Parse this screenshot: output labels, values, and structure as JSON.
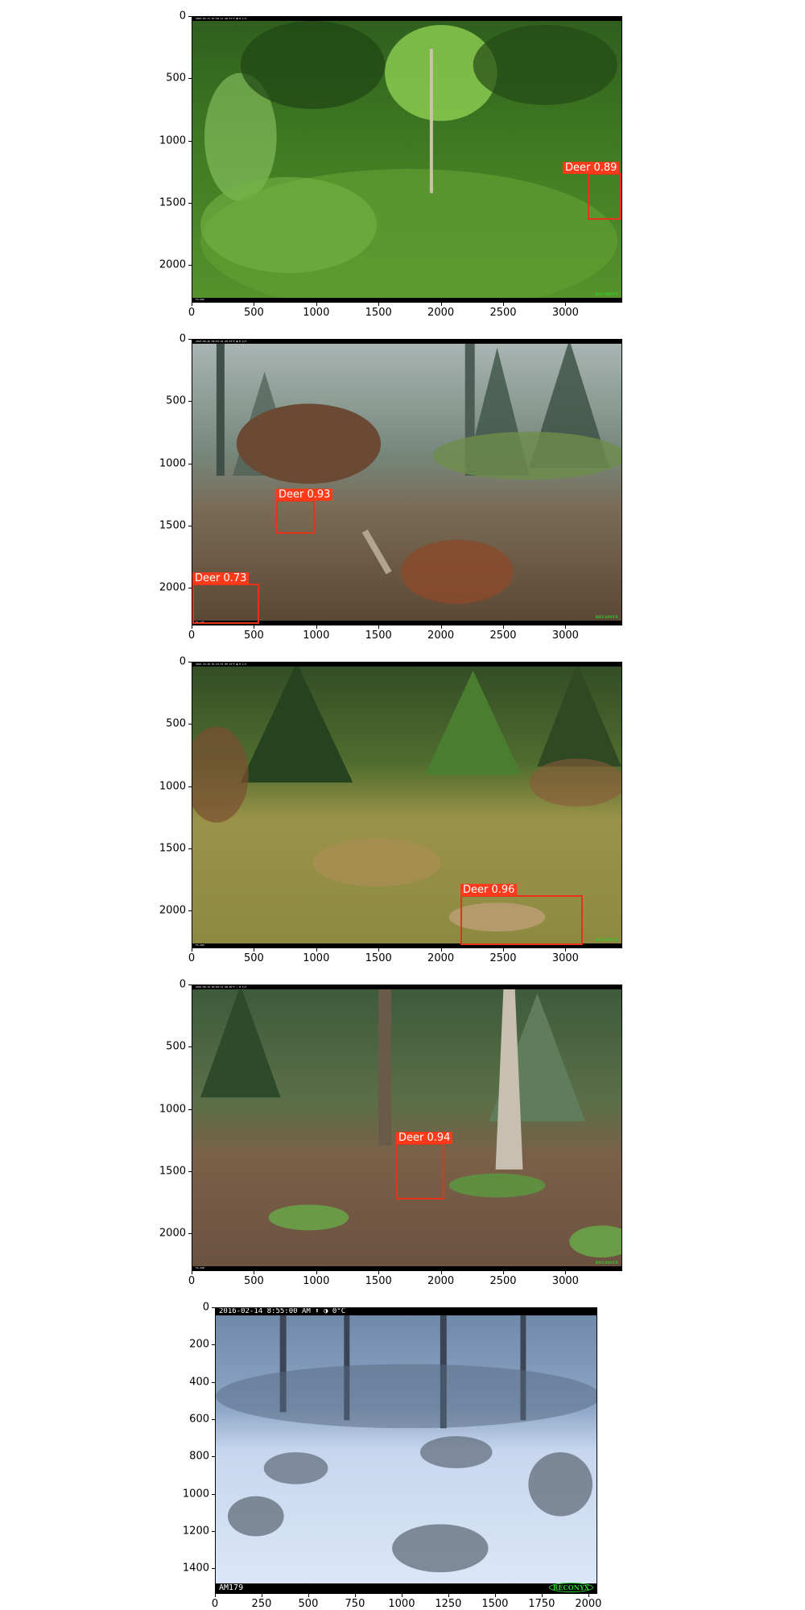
{
  "panels": [
    {
      "x_ticks": [
        "0",
        "500",
        "1000",
        "1500",
        "2000",
        "2500",
        "3000"
      ],
      "y_ticks": [
        "0",
        "500",
        "1000",
        "1500",
        "2000"
      ],
      "hud_top": "2023-05-31 07:50:11 AM   57°F ●   M 1/3",
      "hud_bottom": "FS-S05",
      "logo": "RECONYX",
      "detections": [
        {
          "label": "Deer 0.89",
          "class": "Deer",
          "confidence": 0.89
        }
      ]
    },
    {
      "x_ticks": [
        "0",
        "500",
        "1000",
        "1500",
        "2000",
        "2500",
        "3000"
      ],
      "y_ticks": [
        "0",
        "500",
        "1000",
        "1500",
        "2000"
      ],
      "hud_top": "2023-08-25 09:05:22 AM   53°F ●   M 2/3",
      "hud_bottom": "FS-S05",
      "logo": "RECONYX",
      "detections": [
        {
          "label": "Deer 0.93",
          "class": "Deer",
          "confidence": 0.93
        },
        {
          "label": "Deer 0.73",
          "class": "Deer",
          "confidence": 0.73
        }
      ]
    },
    {
      "x_ticks": [
        "0",
        "500",
        "1000",
        "1500",
        "2000",
        "2500",
        "3000"
      ],
      "y_ticks": [
        "0",
        "500",
        "1000",
        "1500",
        "2000"
      ],
      "hud_top": "2023-10-30 01:23:53 PM   42°F ●   M 1/3",
      "hud_bottom": "FS-S05",
      "logo": "RECONYX",
      "detections": [
        {
          "label": "Deer 0.96",
          "class": "Deer",
          "confidence": 0.96
        }
      ]
    },
    {
      "x_ticks": [
        "0",
        "500",
        "1000",
        "1500",
        "2000",
        "2500",
        "3000"
      ],
      "y_ticks": [
        "0",
        "500",
        "1000",
        "1500",
        "2000"
      ],
      "hud_top": "2024-08-12 02:06:13 AM   66°F ☾   M 1/3",
      "hud_bottom": "FS-S08",
      "logo": "RECONYX",
      "detections": [
        {
          "label": "Deer 0.94",
          "class": "Deer",
          "confidence": 0.94
        }
      ]
    },
    {
      "x_ticks": [
        "0",
        "250",
        "500",
        "750",
        "1000",
        "1250",
        "1500",
        "1750",
        "2000"
      ],
      "y_ticks": [
        "0",
        "200",
        "400",
        "600",
        "800",
        "1000",
        "1200",
        "1400"
      ],
      "hud_top": "2016-02-14  8:55:00 AM   ⬆                              ◑    0°C",
      "hud_bottom": "AM179",
      "logo": "RECONYX",
      "detections": []
    }
  ]
}
